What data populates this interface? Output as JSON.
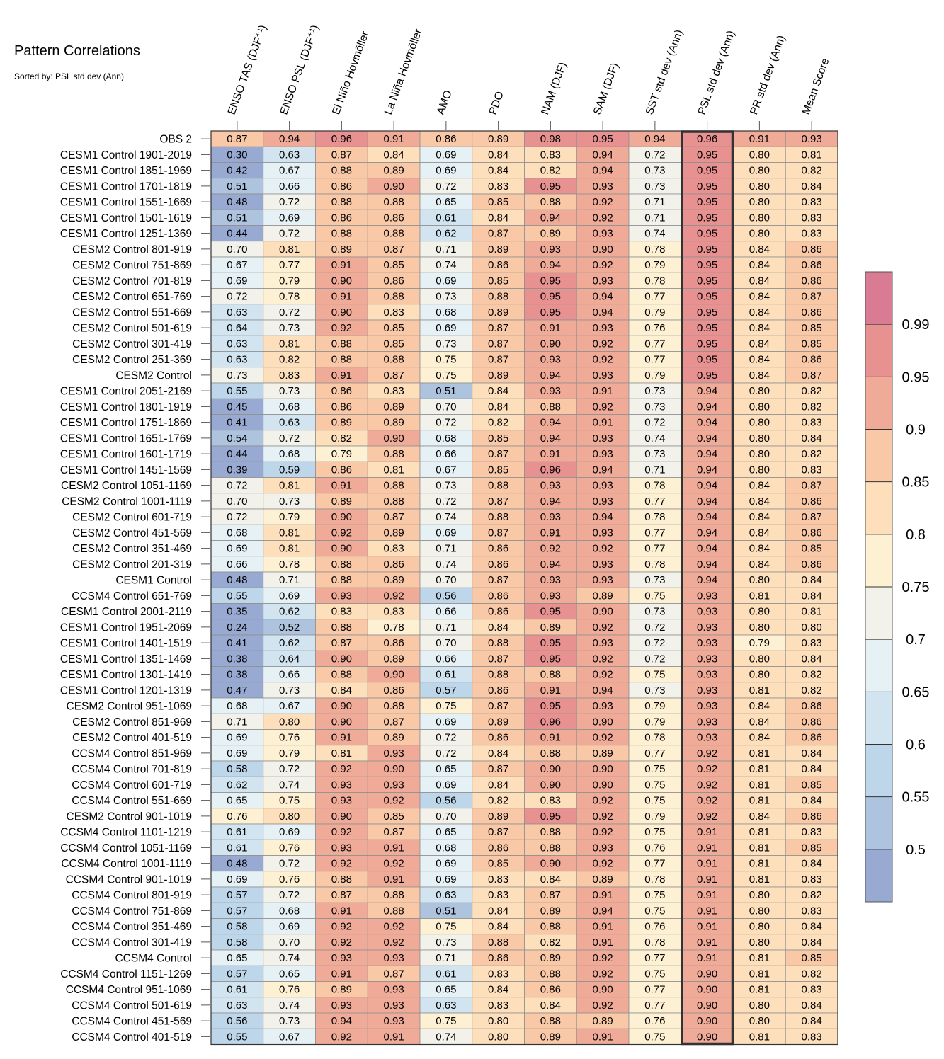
{
  "chart_data": {
    "type": "heatmap",
    "title": "Pattern Correlations",
    "subtitle": "Sorted by: PSL std dev (Ann)",
    "columns": [
      "ENSO TAS (DJF⁺¹)",
      "ENSO PSL (DJF⁺¹)",
      "El Niño Hovmöller",
      "La Niña Hovmöller",
      "AMO",
      "PDO",
      "NAM (DJF)",
      "SAM (DJF)",
      "SST std dev (Ann)",
      "PSL std dev (Ann)",
      "PR std dev (Ann)",
      "Mean Score"
    ],
    "highlighted_column": "PSL std dev (Ann)",
    "rows": [
      {
        "label": "OBS 2",
        "values": [
          0.87,
          0.94,
          0.96,
          0.91,
          0.86,
          0.89,
          0.98,
          0.95,
          0.94,
          0.96,
          0.91,
          0.93
        ]
      },
      {
        "label": "CESM1 Control 1901-2019",
        "values": [
          0.3,
          0.63,
          0.87,
          0.84,
          0.69,
          0.84,
          0.83,
          0.94,
          0.72,
          0.95,
          0.8,
          0.81
        ]
      },
      {
        "label": "CESM1 Control 1851-1969",
        "values": [
          0.42,
          0.67,
          0.88,
          0.89,
          0.69,
          0.84,
          0.82,
          0.94,
          0.73,
          0.95,
          0.8,
          0.82
        ]
      },
      {
        "label": "CESM1 Control 1701-1819",
        "values": [
          0.51,
          0.66,
          0.86,
          0.9,
          0.72,
          0.83,
          0.95,
          0.93,
          0.73,
          0.95,
          0.8,
          0.84
        ]
      },
      {
        "label": "CESM1 Control 1551-1669",
        "values": [
          0.48,
          0.72,
          0.88,
          0.88,
          0.65,
          0.85,
          0.88,
          0.92,
          0.71,
          0.95,
          0.8,
          0.83
        ]
      },
      {
        "label": "CESM1 Control 1501-1619",
        "values": [
          0.51,
          0.69,
          0.86,
          0.86,
          0.61,
          0.84,
          0.94,
          0.92,
          0.71,
          0.95,
          0.8,
          0.83
        ]
      },
      {
        "label": "CESM1 Control 1251-1369",
        "values": [
          0.44,
          0.72,
          0.88,
          0.88,
          0.62,
          0.87,
          0.89,
          0.93,
          0.74,
          0.95,
          0.8,
          0.83
        ]
      },
      {
        "label": "CESM2 Control 801-919",
        "values": [
          0.7,
          0.81,
          0.89,
          0.87,
          0.71,
          0.89,
          0.93,
          0.9,
          0.78,
          0.95,
          0.84,
          0.86
        ]
      },
      {
        "label": "CESM2 Control 751-869",
        "values": [
          0.67,
          0.77,
          0.91,
          0.85,
          0.74,
          0.86,
          0.94,
          0.92,
          0.79,
          0.95,
          0.84,
          0.86
        ]
      },
      {
        "label": "CESM2 Control 701-819",
        "values": [
          0.69,
          0.79,
          0.9,
          0.86,
          0.69,
          0.85,
          0.95,
          0.93,
          0.78,
          0.95,
          0.84,
          0.86
        ]
      },
      {
        "label": "CESM2 Control 651-769",
        "values": [
          0.72,
          0.78,
          0.91,
          0.88,
          0.73,
          0.88,
          0.95,
          0.94,
          0.77,
          0.95,
          0.84,
          0.87
        ]
      },
      {
        "label": "CESM2 Control 551-669",
        "values": [
          0.63,
          0.72,
          0.9,
          0.83,
          0.68,
          0.89,
          0.95,
          0.94,
          0.79,
          0.95,
          0.84,
          0.86
        ]
      },
      {
        "label": "CESM2 Control 501-619",
        "values": [
          0.64,
          0.73,
          0.92,
          0.85,
          0.69,
          0.87,
          0.91,
          0.93,
          0.76,
          0.95,
          0.84,
          0.85
        ]
      },
      {
        "label": "CESM2 Control 301-419",
        "values": [
          0.63,
          0.81,
          0.88,
          0.85,
          0.73,
          0.87,
          0.9,
          0.92,
          0.77,
          0.95,
          0.84,
          0.85
        ]
      },
      {
        "label": "CESM2 Control 251-369",
        "values": [
          0.63,
          0.82,
          0.88,
          0.88,
          0.75,
          0.87,
          0.93,
          0.92,
          0.77,
          0.95,
          0.84,
          0.86
        ]
      },
      {
        "label": "CESM2 Control",
        "values": [
          0.73,
          0.83,
          0.91,
          0.87,
          0.75,
          0.89,
          0.94,
          0.93,
          0.79,
          0.95,
          0.84,
          0.87
        ]
      },
      {
        "label": "CESM1 Control 2051-2169",
        "values": [
          0.55,
          0.73,
          0.86,
          0.83,
          0.51,
          0.84,
          0.93,
          0.91,
          0.73,
          0.94,
          0.8,
          0.82
        ]
      },
      {
        "label": "CESM1 Control 1801-1919",
        "values": [
          0.45,
          0.68,
          0.86,
          0.89,
          0.7,
          0.84,
          0.88,
          0.92,
          0.73,
          0.94,
          0.8,
          0.82
        ]
      },
      {
        "label": "CESM1 Control 1751-1869",
        "values": [
          0.41,
          0.63,
          0.89,
          0.89,
          0.72,
          0.82,
          0.94,
          0.91,
          0.72,
          0.94,
          0.8,
          0.83
        ]
      },
      {
        "label": "CESM1 Control 1651-1769",
        "values": [
          0.54,
          0.72,
          0.82,
          0.9,
          0.68,
          0.85,
          0.94,
          0.93,
          0.74,
          0.94,
          0.8,
          0.84
        ]
      },
      {
        "label": "CESM1 Control 1601-1719",
        "values": [
          0.44,
          0.68,
          0.79,
          0.88,
          0.66,
          0.87,
          0.91,
          0.93,
          0.73,
          0.94,
          0.8,
          0.82
        ]
      },
      {
        "label": "CESM1 Control 1451-1569",
        "values": [
          0.39,
          0.59,
          0.86,
          0.81,
          0.67,
          0.85,
          0.96,
          0.94,
          0.71,
          0.94,
          0.8,
          0.83
        ]
      },
      {
        "label": "CESM2 Control 1051-1169",
        "values": [
          0.72,
          0.81,
          0.91,
          0.88,
          0.73,
          0.88,
          0.93,
          0.93,
          0.78,
          0.94,
          0.84,
          0.87
        ]
      },
      {
        "label": "CESM2 Control 1001-1119",
        "values": [
          0.7,
          0.73,
          0.89,
          0.88,
          0.72,
          0.87,
          0.94,
          0.93,
          0.77,
          0.94,
          0.84,
          0.86
        ]
      },
      {
        "label": "CESM2 Control 601-719",
        "values": [
          0.72,
          0.79,
          0.9,
          0.87,
          0.74,
          0.88,
          0.93,
          0.94,
          0.78,
          0.94,
          0.84,
          0.87
        ]
      },
      {
        "label": "CESM2 Control 451-569",
        "values": [
          0.68,
          0.81,
          0.92,
          0.89,
          0.69,
          0.87,
          0.91,
          0.93,
          0.77,
          0.94,
          0.84,
          0.86
        ]
      },
      {
        "label": "CESM2 Control 351-469",
        "values": [
          0.69,
          0.81,
          0.9,
          0.83,
          0.71,
          0.86,
          0.92,
          0.92,
          0.77,
          0.94,
          0.84,
          0.85
        ]
      },
      {
        "label": "CESM2 Control 201-319",
        "values": [
          0.66,
          0.78,
          0.88,
          0.86,
          0.74,
          0.86,
          0.94,
          0.93,
          0.78,
          0.94,
          0.84,
          0.86
        ]
      },
      {
        "label": "CESM1 Control",
        "values": [
          0.48,
          0.71,
          0.88,
          0.89,
          0.7,
          0.87,
          0.93,
          0.93,
          0.73,
          0.94,
          0.8,
          0.84
        ]
      },
      {
        "label": "CCSM4 Control 651-769",
        "values": [
          0.55,
          0.69,
          0.93,
          0.92,
          0.56,
          0.86,
          0.93,
          0.89,
          0.75,
          0.93,
          0.81,
          0.84
        ]
      },
      {
        "label": "CESM1 Control 2001-2119",
        "values": [
          0.35,
          0.62,
          0.83,
          0.83,
          0.66,
          0.86,
          0.95,
          0.9,
          0.73,
          0.93,
          0.8,
          0.81
        ]
      },
      {
        "label": "CESM1 Control 1951-2069",
        "values": [
          0.24,
          0.52,
          0.88,
          0.78,
          0.71,
          0.84,
          0.89,
          0.92,
          0.72,
          0.93,
          0.8,
          0.8
        ]
      },
      {
        "label": "CESM1 Control 1401-1519",
        "values": [
          0.41,
          0.62,
          0.87,
          0.86,
          0.7,
          0.88,
          0.95,
          0.93,
          0.72,
          0.93,
          0.79,
          0.83
        ]
      },
      {
        "label": "CESM1 Control 1351-1469",
        "values": [
          0.38,
          0.64,
          0.9,
          0.89,
          0.66,
          0.87,
          0.95,
          0.92,
          0.72,
          0.93,
          0.8,
          0.84
        ]
      },
      {
        "label": "CESM1 Control 1301-1419",
        "values": [
          0.38,
          0.66,
          0.88,
          0.9,
          0.61,
          0.88,
          0.88,
          0.92,
          0.75,
          0.93,
          0.8,
          0.82
        ]
      },
      {
        "label": "CESM1 Control 1201-1319",
        "values": [
          0.47,
          0.73,
          0.84,
          0.86,
          0.57,
          0.86,
          0.91,
          0.94,
          0.73,
          0.93,
          0.81,
          0.82
        ]
      },
      {
        "label": "CESM2 Control 951-1069",
        "values": [
          0.68,
          0.67,
          0.9,
          0.88,
          0.75,
          0.87,
          0.95,
          0.93,
          0.79,
          0.93,
          0.84,
          0.86
        ]
      },
      {
        "label": "CESM2 Control 851-969",
        "values": [
          0.71,
          0.8,
          0.9,
          0.87,
          0.69,
          0.89,
          0.96,
          0.9,
          0.79,
          0.93,
          0.84,
          0.86
        ]
      },
      {
        "label": "CESM2 Control 401-519",
        "values": [
          0.69,
          0.76,
          0.91,
          0.89,
          0.72,
          0.86,
          0.91,
          0.92,
          0.78,
          0.93,
          0.84,
          0.86
        ]
      },
      {
        "label": "CCSM4 Control 851-969",
        "values": [
          0.69,
          0.79,
          0.81,
          0.93,
          0.72,
          0.84,
          0.88,
          0.89,
          0.77,
          0.92,
          0.81,
          0.84
        ]
      },
      {
        "label": "CCSM4 Control 701-819",
        "values": [
          0.58,
          0.72,
          0.92,
          0.9,
          0.65,
          0.87,
          0.9,
          0.9,
          0.75,
          0.92,
          0.81,
          0.84
        ]
      },
      {
        "label": "CCSM4 Control 601-719",
        "values": [
          0.62,
          0.74,
          0.93,
          0.93,
          0.69,
          0.84,
          0.9,
          0.9,
          0.75,
          0.92,
          0.81,
          0.85
        ]
      },
      {
        "label": "CCSM4 Control 551-669",
        "values": [
          0.65,
          0.75,
          0.93,
          0.92,
          0.56,
          0.82,
          0.83,
          0.92,
          0.75,
          0.92,
          0.81,
          0.84
        ]
      },
      {
        "label": "CESM2 Control 901-1019",
        "values": [
          0.76,
          0.8,
          0.9,
          0.85,
          0.7,
          0.89,
          0.95,
          0.92,
          0.79,
          0.92,
          0.84,
          0.86
        ]
      },
      {
        "label": "CCSM4 Control 1101-1219",
        "values": [
          0.61,
          0.69,
          0.92,
          0.87,
          0.65,
          0.87,
          0.88,
          0.92,
          0.75,
          0.91,
          0.81,
          0.83
        ]
      },
      {
        "label": "CCSM4 Control 1051-1169",
        "values": [
          0.61,
          0.76,
          0.93,
          0.91,
          0.68,
          0.86,
          0.88,
          0.93,
          0.76,
          0.91,
          0.81,
          0.85
        ]
      },
      {
        "label": "CCSM4 Control 1001-1119",
        "values": [
          0.48,
          0.72,
          0.92,
          0.92,
          0.69,
          0.85,
          0.9,
          0.92,
          0.77,
          0.91,
          0.81,
          0.84
        ]
      },
      {
        "label": "CCSM4 Control 901-1019",
        "values": [
          0.69,
          0.76,
          0.88,
          0.91,
          0.69,
          0.83,
          0.84,
          0.89,
          0.78,
          0.91,
          0.81,
          0.83
        ]
      },
      {
        "label": "CCSM4 Control 801-919",
        "values": [
          0.57,
          0.72,
          0.87,
          0.88,
          0.63,
          0.83,
          0.87,
          0.91,
          0.75,
          0.91,
          0.8,
          0.82
        ]
      },
      {
        "label": "CCSM4 Control 751-869",
        "values": [
          0.57,
          0.68,
          0.91,
          0.88,
          0.51,
          0.84,
          0.89,
          0.94,
          0.75,
          0.91,
          0.8,
          0.83
        ]
      },
      {
        "label": "CCSM4 Control 351-469",
        "values": [
          0.58,
          0.69,
          0.92,
          0.92,
          0.75,
          0.84,
          0.88,
          0.91,
          0.76,
          0.91,
          0.8,
          0.84
        ]
      },
      {
        "label": "CCSM4 Control 301-419",
        "values": [
          0.58,
          0.7,
          0.92,
          0.92,
          0.73,
          0.88,
          0.82,
          0.91,
          0.78,
          0.91,
          0.8,
          0.84
        ]
      },
      {
        "label": "CCSM4 Control",
        "values": [
          0.65,
          0.74,
          0.93,
          0.93,
          0.71,
          0.86,
          0.89,
          0.92,
          0.77,
          0.91,
          0.81,
          0.85
        ]
      },
      {
        "label": "CCSM4 Control 1151-1269",
        "values": [
          0.57,
          0.65,
          0.91,
          0.87,
          0.61,
          0.83,
          0.88,
          0.92,
          0.75,
          0.9,
          0.81,
          0.82
        ]
      },
      {
        "label": "CCSM4 Control 951-1069",
        "values": [
          0.61,
          0.76,
          0.89,
          0.93,
          0.65,
          0.84,
          0.86,
          0.9,
          0.77,
          0.9,
          0.81,
          0.83
        ]
      },
      {
        "label": "CCSM4 Control 501-619",
        "values": [
          0.63,
          0.74,
          0.93,
          0.93,
          0.63,
          0.83,
          0.84,
          0.92,
          0.77,
          0.9,
          0.8,
          0.84
        ]
      },
      {
        "label": "CCSM4 Control 451-569",
        "values": [
          0.56,
          0.73,
          0.94,
          0.93,
          0.75,
          0.8,
          0.88,
          0.89,
          0.76,
          0.9,
          0.8,
          0.84
        ]
      },
      {
        "label": "CCSM4 Control 401-519",
        "values": [
          0.55,
          0.67,
          0.92,
          0.91,
          0.74,
          0.8,
          0.89,
          0.91,
          0.75,
          0.9,
          0.81,
          0.83
        ]
      }
    ],
    "colorbar": {
      "levels": [
        0.5,
        0.55,
        0.6,
        0.65,
        0.7,
        0.75,
        0.8,
        0.85,
        0.9,
        0.95,
        0.99
      ],
      "tick_labels": [
        "0.5",
        "0.55",
        "0.6",
        "0.65",
        "0.7",
        "0.75",
        "0.8",
        "0.85",
        "0.9",
        "0.95",
        "0.99"
      ],
      "colors": [
        "#98a9d2",
        "#adc3de",
        "#bed6e9",
        "#d1e4ef",
        "#e6f1f5",
        "#f2f1ea",
        "#fdf0d3",
        "#fddfbc",
        "#f9c8a7",
        "#f0ab98",
        "#e79191",
        "#d97b93"
      ]
    }
  }
}
